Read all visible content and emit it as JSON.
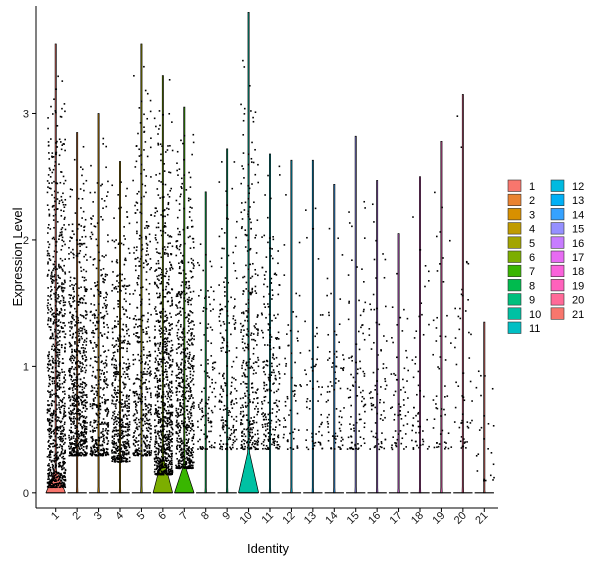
{
  "chart_data": {
    "type": "violin",
    "xlabel": "Identity",
    "ylabel": "Expression Level",
    "ylim": [
      -0.12,
      3.85
    ],
    "y_ticks": [
      "0",
      "1",
      "2",
      "3"
    ],
    "categories": [
      "1",
      "2",
      "3",
      "4",
      "5",
      "6",
      "7",
      "8",
      "9",
      "10",
      "11",
      "12",
      "13",
      "14",
      "15",
      "16",
      "17",
      "18",
      "19",
      "20",
      "21"
    ],
    "colors": [
      "#F8766D",
      "#EA8331",
      "#D89000",
      "#C09B00",
      "#A3A500",
      "#7CAE00",
      "#39B600",
      "#00BB4E",
      "#00BF7D",
      "#00C1A3",
      "#00BFC4",
      "#00BAE0",
      "#00B0F6",
      "#35A2FF",
      "#9590FF",
      "#C77CFF",
      "#E76BF3",
      "#FA62DB",
      "#FF62BC",
      "#FF6A98",
      "#F8766D"
    ],
    "violins": [
      {
        "cluster": "1",
        "max": 3.55,
        "point_density": 1.0,
        "zero_bulge_width": 0.95,
        "zero_bulge_height": 0.18,
        "point_min": 0.05
      },
      {
        "cluster": "2",
        "max": 2.85,
        "point_density": 0.75,
        "zero_bulge_width": 0.02,
        "zero_bulge_height": 0.0,
        "point_min": 0.3
      },
      {
        "cluster": "3",
        "max": 3.0,
        "point_density": 0.45,
        "zero_bulge_width": 0.02,
        "zero_bulge_height": 0.0,
        "point_min": 0.3
      },
      {
        "cluster": "4",
        "max": 2.62,
        "point_density": 0.55,
        "zero_bulge_width": 0.02,
        "zero_bulge_height": 0.0,
        "point_min": 0.25
      },
      {
        "cluster": "5",
        "max": 3.55,
        "point_density": 0.48,
        "zero_bulge_width": 0.02,
        "zero_bulge_height": 0.0,
        "point_min": 0.3
      },
      {
        "cluster": "6",
        "max": 3.3,
        "point_density": 0.9,
        "zero_bulge_width": 0.95,
        "zero_bulge_height": 0.28,
        "point_min": 0.15
      },
      {
        "cluster": "7",
        "max": 3.05,
        "point_density": 0.7,
        "zero_bulge_width": 0.95,
        "zero_bulge_height": 0.22,
        "point_min": 0.2
      },
      {
        "cluster": "8",
        "max": 2.38,
        "point_density": 0.12,
        "zero_bulge_width": 0.02,
        "zero_bulge_height": 0.0,
        "point_min": 0.35
      },
      {
        "cluster": "9",
        "max": 2.72,
        "point_density": 0.2,
        "zero_bulge_width": 0.02,
        "zero_bulge_height": 0.0,
        "point_min": 0.35
      },
      {
        "cluster": "10",
        "max": 3.8,
        "point_density": 0.35,
        "zero_bulge_width": 0.98,
        "zero_bulge_height": 0.33,
        "point_min": 0.35
      },
      {
        "cluster": "11",
        "max": 2.68,
        "point_density": 0.25,
        "zero_bulge_width": 0.02,
        "zero_bulge_height": 0.0,
        "point_min": 0.35
      },
      {
        "cluster": "12",
        "max": 2.63,
        "point_density": 0.06,
        "zero_bulge_width": 0.02,
        "zero_bulge_height": 0.0,
        "point_min": 0.35
      },
      {
        "cluster": "13",
        "max": 2.63,
        "point_density": 0.06,
        "zero_bulge_width": 0.02,
        "zero_bulge_height": 0.0,
        "point_min": 0.35
      },
      {
        "cluster": "14",
        "max": 2.44,
        "point_density": 0.08,
        "zero_bulge_width": 0.02,
        "zero_bulge_height": 0.0,
        "point_min": 0.35
      },
      {
        "cluster": "15",
        "max": 2.82,
        "point_density": 0.1,
        "zero_bulge_width": 0.02,
        "zero_bulge_height": 0.0,
        "point_min": 0.35
      },
      {
        "cluster": "16",
        "max": 2.47,
        "point_density": 0.08,
        "zero_bulge_width": 0.02,
        "zero_bulge_height": 0.0,
        "point_min": 0.35
      },
      {
        "cluster": "17",
        "max": 2.05,
        "point_density": 0.06,
        "zero_bulge_width": 0.02,
        "zero_bulge_height": 0.0,
        "point_min": 0.35
      },
      {
        "cluster": "18",
        "max": 2.5,
        "point_density": 0.05,
        "zero_bulge_width": 0.02,
        "zero_bulge_height": 0.0,
        "point_min": 0.35
      },
      {
        "cluster": "19",
        "max": 2.78,
        "point_density": 0.05,
        "zero_bulge_width": 0.02,
        "zero_bulge_height": 0.0,
        "point_min": 0.35
      },
      {
        "cluster": "20",
        "max": 3.15,
        "point_density": 0.05,
        "zero_bulge_width": 0.02,
        "zero_bulge_height": 0.0,
        "point_min": 0.35
      },
      {
        "cluster": "21",
        "max": 1.35,
        "point_density": 0.02,
        "zero_bulge_width": 0.02,
        "zero_bulge_height": 0.0,
        "point_min": 0.1
      }
    ],
    "legend": {
      "placement": "right",
      "columns": 2,
      "entries": [
        "1",
        "2",
        "3",
        "4",
        "5",
        "6",
        "7",
        "8",
        "9",
        "10",
        "11",
        "12",
        "13",
        "14",
        "15",
        "16",
        "17",
        "18",
        "19",
        "20",
        "21"
      ]
    },
    "grid": false
  }
}
